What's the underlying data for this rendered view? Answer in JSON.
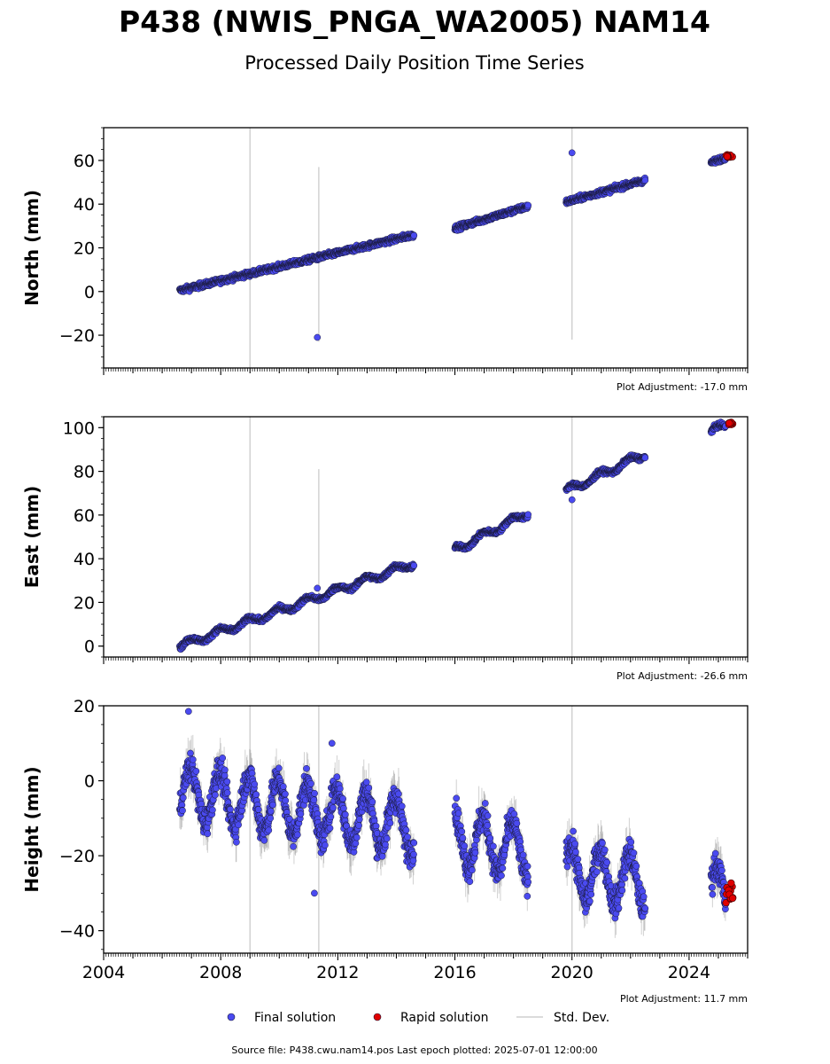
{
  "title": "P438 (NWIS_PNGA_WA2005) NAM14",
  "subtitle": "Processed Daily Position Time Series",
  "source_line": "Source file: P438.cwu.nam14.pos  Last epoch plotted: 2025-07-01 12:00:00",
  "legend": {
    "final": "Final solution",
    "rapid": "Rapid solution",
    "std": "Std. Dev."
  },
  "colors": {
    "final": "#4a4af0",
    "rapid": "#e00000",
    "std": "#b0b0b0",
    "edge": "#1a1a3a"
  },
  "chart_data": [
    {
      "type": "scatter",
      "ylabel": "North (mm)",
      "adjustment": "Plot Adjustment: -17.0 mm",
      "xlim": [
        2004,
        2026
      ],
      "ylim": [
        -35,
        75
      ],
      "yticks": [
        -20,
        0,
        20,
        40,
        60
      ],
      "ytick_labels": [
        "−20",
        "0",
        "20",
        "40",
        "60"
      ],
      "data_segments": [
        {
          "x_start": 2006.6,
          "x_end": 2014.6,
          "y_start": 0.5,
          "y_end": 26
        },
        {
          "x_start": 2016.0,
          "x_end": 2018.5,
          "y_start": 29,
          "y_end": 39
        },
        {
          "x_start": 2019.8,
          "x_end": 2022.5,
          "y_start": 41,
          "y_end": 51
        },
        {
          "x_start": 2024.75,
          "x_end": 2025.25,
          "y_start": 59,
          "y_end": 61.5
        }
      ],
      "noise_mm": 1.4,
      "seasonal_mm": 0,
      "outliers": [
        {
          "x": 2011.3,
          "y": -21
        },
        {
          "x": 2020.0,
          "y": 63.5
        }
      ],
      "rapid": {
        "x_start": 2025.25,
        "x_end": 2025.5,
        "y": 62,
        "spread": 0.6
      },
      "std_lines": [
        {
          "x": 2009.0,
          "y0": -35,
          "y1": 75
        },
        {
          "x": 2011.35,
          "y0": -23,
          "y1": 57
        },
        {
          "x": 2020.0,
          "y0": -22,
          "y1": 75
        }
      ]
    },
    {
      "type": "scatter",
      "ylabel": "East (mm)",
      "adjustment": "Plot Adjustment: -26.6 mm",
      "xlim": [
        2004,
        2026
      ],
      "ylim": [
        -5,
        105
      ],
      "yticks": [
        0,
        20,
        40,
        60,
        80,
        100
      ],
      "ytick_labels": [
        "0",
        "20",
        "40",
        "60",
        "80",
        "100"
      ],
      "data_segments": [
        {
          "x_start": 2006.6,
          "x_end": 2014.6,
          "y_start": 0,
          "y_end": 38
        },
        {
          "x_start": 2016.0,
          "x_end": 2018.5,
          "y_start": 44,
          "y_end": 61
        },
        {
          "x_start": 2019.8,
          "x_end": 2022.5,
          "y_start": 71,
          "y_end": 88
        },
        {
          "x_start": 2024.75,
          "x_end": 2025.25,
          "y_start": 98,
          "y_end": 101
        }
      ],
      "noise_mm": 1.2,
      "seasonal_mm": 1.5,
      "outliers": [
        {
          "x": 2011.3,
          "y": 26.5
        },
        {
          "x": 2020.0,
          "y": 67
        }
      ],
      "rapid": {
        "x_start": 2025.25,
        "x_end": 2025.5,
        "y": 102,
        "spread": 0.6
      },
      "std_lines": [
        {
          "x": 2009.0,
          "y0": -5,
          "y1": 105
        },
        {
          "x": 2011.35,
          "y0": -5,
          "y1": 81
        },
        {
          "x": 2020.0,
          "y0": -5,
          "y1": 105
        }
      ]
    },
    {
      "type": "scatter",
      "ylabel": "Height (mm)",
      "adjustment": "Plot Adjustment: 11.7 mm",
      "xlim": [
        2004,
        2026
      ],
      "ylim": [
        -46,
        20
      ],
      "yticks": [
        -40,
        -20,
        0,
        20
      ],
      "ytick_labels": [
        "−40",
        "−20",
        "0",
        "20"
      ],
      "xticks": [
        2004,
        2008,
        2012,
        2016,
        2020,
        2024
      ],
      "xtick_labels": [
        "2004",
        "2008",
        "2012",
        "2016",
        "2020",
        "2024"
      ],
      "data_segments": [
        {
          "x_start": 2006.6,
          "x_end": 2014.6,
          "y_start": -3,
          "y_end": -12
        },
        {
          "x_start": 2016.0,
          "x_end": 2018.5,
          "y_start": -15,
          "y_end": -19
        },
        {
          "x_start": 2019.8,
          "x_end": 2022.5,
          "y_start": -24,
          "y_end": -27
        },
        {
          "x_start": 2024.75,
          "x_end": 2025.25,
          "y_start": -29,
          "y_end": -31
        }
      ],
      "noise_mm": 4.5,
      "seasonal_mm": 7,
      "outliers": [
        {
          "x": 2006.9,
          "y": 18.5
        },
        {
          "x": 2011.8,
          "y": 10
        },
        {
          "x": 2011.2,
          "y": -30
        }
      ],
      "rapid": {
        "x_start": 2025.25,
        "x_end": 2025.5,
        "y": -30,
        "spread": 3
      },
      "std_lines": [
        {
          "x": 2009.0,
          "y0": -46,
          "y1": 20
        },
        {
          "x": 2011.35,
          "y0": -46,
          "y1": 20
        },
        {
          "x": 2020.0,
          "y0": -46,
          "y1": 20
        }
      ]
    }
  ]
}
